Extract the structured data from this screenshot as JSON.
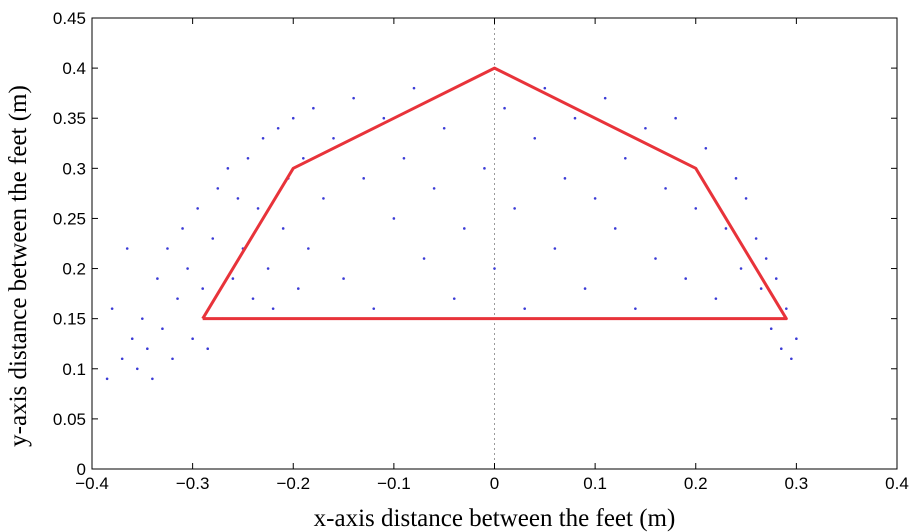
{
  "chart_data": {
    "type": "scatter",
    "xlabel": "x-axis distance between the feet (m)",
    "ylabel": "y-axis distance between the feet (m)",
    "xlim": [
      -0.4,
      0.4
    ],
    "ylim": [
      0,
      0.45
    ],
    "xticks": [
      -0.4,
      -0.3,
      -0.2,
      -0.1,
      0,
      0.1,
      0.2,
      0.3,
      0.4
    ],
    "xtick_labels": [
      "−0.4",
      "−0.3",
      "−0.2",
      "−0.1",
      "0",
      "0.1",
      "0.2",
      "0.3",
      "0.4"
    ],
    "yticks": [
      0,
      0.05,
      0.1,
      0.15,
      0.2,
      0.25,
      0.3,
      0.35,
      0.4,
      0.45
    ],
    "ytick_labels": [
      "0",
      "0.05",
      "0.1",
      "0.15",
      "0.2",
      "0.25",
      "0.3",
      "0.35",
      "0.4",
      "0.45"
    ],
    "grid": false,
    "reference_line": {
      "x": 0,
      "style": "dotted"
    },
    "series": [
      {
        "type": "polygon",
        "color": "#e8333a",
        "points": [
          [
            -0.29,
            0.15
          ],
          [
            -0.2,
            0.3
          ],
          [
            0,
            0.4
          ],
          [
            0.2,
            0.3
          ],
          [
            0.29,
            0.15
          ],
          [
            -0.29,
            0.15
          ]
        ]
      },
      {
        "type": "scatter",
        "color": "#3b3bd6",
        "points": [
          [
            -0.385,
            0.09
          ],
          [
            -0.38,
            0.16
          ],
          [
            -0.37,
            0.11
          ],
          [
            -0.365,
            0.22
          ],
          [
            -0.36,
            0.13
          ],
          [
            -0.355,
            0.1
          ],
          [
            -0.35,
            0.15
          ],
          [
            -0.345,
            0.12
          ],
          [
            -0.34,
            0.09
          ],
          [
            -0.335,
            0.19
          ],
          [
            -0.33,
            0.14
          ],
          [
            -0.325,
            0.22
          ],
          [
            -0.32,
            0.11
          ],
          [
            -0.315,
            0.17
          ],
          [
            -0.31,
            0.24
          ],
          [
            -0.305,
            0.2
          ],
          [
            -0.3,
            0.13
          ],
          [
            -0.295,
            0.26
          ],
          [
            -0.29,
            0.18
          ],
          [
            -0.285,
            0.12
          ],
          [
            -0.28,
            0.23
          ],
          [
            -0.275,
            0.28
          ],
          [
            -0.27,
            0.15
          ],
          [
            -0.265,
            0.3
          ],
          [
            -0.26,
            0.19
          ],
          [
            -0.255,
            0.27
          ],
          [
            -0.25,
            0.22
          ],
          [
            -0.245,
            0.31
          ],
          [
            -0.24,
            0.17
          ],
          [
            -0.235,
            0.26
          ],
          [
            -0.23,
            0.33
          ],
          [
            -0.225,
            0.2
          ],
          [
            -0.22,
            0.16
          ],
          [
            -0.215,
            0.34
          ],
          [
            -0.21,
            0.24
          ],
          [
            -0.205,
            0.29
          ],
          [
            -0.2,
            0.35
          ],
          [
            -0.195,
            0.18
          ],
          [
            -0.19,
            0.31
          ],
          [
            -0.185,
            0.22
          ],
          [
            -0.18,
            0.36
          ],
          [
            -0.17,
            0.27
          ],
          [
            -0.16,
            0.33
          ],
          [
            -0.15,
            0.19
          ],
          [
            -0.14,
            0.37
          ],
          [
            -0.13,
            0.29
          ],
          [
            -0.12,
            0.16
          ],
          [
            -0.11,
            0.35
          ],
          [
            -0.1,
            0.25
          ],
          [
            -0.09,
            0.31
          ],
          [
            -0.08,
            0.38
          ],
          [
            -0.07,
            0.21
          ],
          [
            -0.06,
            0.28
          ],
          [
            -0.05,
            0.34
          ],
          [
            -0.04,
            0.17
          ],
          [
            -0.03,
            0.24
          ],
          [
            -0.02,
            0.39
          ],
          [
            -0.01,
            0.3
          ],
          [
            0,
            0.2
          ],
          [
            0.01,
            0.36
          ],
          [
            0.02,
            0.26
          ],
          [
            0.03,
            0.16
          ],
          [
            0.04,
            0.33
          ],
          [
            0.05,
            0.38
          ],
          [
            0.06,
            0.22
          ],
          [
            0.07,
            0.29
          ],
          [
            0.08,
            0.35
          ],
          [
            0.09,
            0.18
          ],
          [
            0.1,
            0.27
          ],
          [
            0.11,
            0.37
          ],
          [
            0.12,
            0.24
          ],
          [
            0.13,
            0.31
          ],
          [
            0.14,
            0.16
          ],
          [
            0.15,
            0.34
          ],
          [
            0.16,
            0.21
          ],
          [
            0.17,
            0.28
          ],
          [
            0.18,
            0.35
          ],
          [
            0.19,
            0.19
          ],
          [
            0.2,
            0.26
          ],
          [
            0.21,
            0.32
          ],
          [
            0.22,
            0.17
          ],
          [
            0.23,
            0.24
          ],
          [
            0.24,
            0.29
          ],
          [
            0.245,
            0.2
          ],
          [
            0.25,
            0.27
          ],
          [
            0.255,
            0.15
          ],
          [
            0.26,
            0.23
          ],
          [
            0.265,
            0.18
          ],
          [
            0.27,
            0.21
          ],
          [
            0.275,
            0.14
          ],
          [
            0.28,
            0.19
          ],
          [
            0.285,
            0.12
          ],
          [
            0.29,
            0.16
          ],
          [
            0.295,
            0.11
          ],
          [
            0.3,
            0.13
          ]
        ]
      }
    ]
  }
}
